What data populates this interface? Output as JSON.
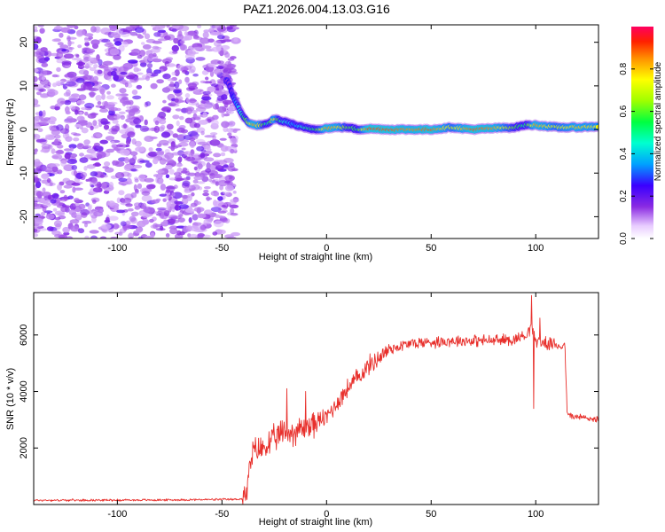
{
  "title": "PAZ1.2026.004.13.03.G16",
  "chart_data": [
    {
      "type": "heatmap",
      "name": "spectrogram",
      "xlabel": "Height of straight line (km)",
      "ylabel": "Frequency (Hz)",
      "xlim": [
        -140,
        130
      ],
      "ylim": [
        -25,
        24
      ],
      "xticks": [
        -100,
        -50,
        0,
        50,
        100
      ],
      "yticks": [
        -20,
        -10,
        0,
        10,
        20
      ],
      "colorbar": {
        "label": "Normalized spectral amplitude",
        "range": [
          0,
          1
        ],
        "ticks": [
          0.0,
          0.2,
          0.4,
          0.6,
          0.8
        ],
        "tick_labels": [
          "0.0",
          "0.2",
          "0.4",
          "0.6",
          "0.8"
        ]
      },
      "noise_region_x": [
        -140,
        -45
      ],
      "noise_amplitude_range": [
        0.05,
        0.2
      ],
      "ridge": {
        "x": [
          -47,
          -45,
          -42,
          -40,
          -37,
          -35,
          -32,
          -28,
          -25,
          -22,
          -18,
          -15,
          -10,
          -5,
          0,
          5,
          10,
          15,
          20,
          30,
          40,
          50,
          60,
          70,
          80,
          90,
          95,
          100,
          110,
          120,
          130
        ],
        "freq": [
          11,
          8,
          5,
          3,
          1.5,
          1,
          1,
          1.2,
          2.5,
          2,
          1.5,
          1,
          0.3,
          0,
          0.3,
          0.5,
          0.5,
          0,
          0.2,
          0,
          0,
          0,
          0.5,
          0,
          0.3,
          0.5,
          1,
          1,
          0.5,
          0.5,
          0.7
        ],
        "amplitude": [
          0.15,
          0.25,
          0.4,
          0.5,
          0.7,
          0.85,
          0.75,
          0.45,
          0.8,
          0.5,
          0.4,
          0.35,
          0.5,
          0.55,
          0.85,
          0.8,
          0.6,
          0.55,
          0.9,
          0.9,
          0.85,
          0.9,
          0.7,
          0.9,
          0.85,
          0.6,
          0.5,
          0.85,
          0.7,
          0.8,
          0.75
        ]
      }
    },
    {
      "type": "line",
      "name": "snr",
      "xlabel": "Height of straight line (km)",
      "ylabel": "SNR (10 * v/v)",
      "xlim": [
        -140,
        130
      ],
      "ylim": [
        0,
        7500
      ],
      "xticks": [
        -100,
        -50,
        0,
        50,
        100
      ],
      "yticks": [
        2000,
        4000,
        6000
      ],
      "series": [
        {
          "name": "SNR",
          "color": "#e8302c",
          "x": [
            -140,
            -80,
            -45,
            -40,
            -38,
            -36,
            -34,
            -30,
            -25,
            -20,
            -18,
            -15,
            -10,
            -5,
            0,
            10,
            20,
            30,
            40,
            50,
            60,
            70,
            80,
            90,
            95,
            98,
            100,
            105,
            110,
            114,
            115,
            118,
            120,
            125,
            130
          ],
          "values": [
            150,
            160,
            180,
            200,
            400,
            1700,
            1900,
            2000,
            2300,
            2600,
            2500,
            2600,
            2700,
            2900,
            3100,
            4100,
            4900,
            5500,
            5700,
            5750,
            5800,
            5800,
            5800,
            5850,
            6000,
            6300,
            5800,
            5700,
            5650,
            5600,
            3200,
            3100,
            3100,
            3050,
            3000
          ],
          "spikes": [
            {
              "x": -19,
              "value": 4100
            },
            {
              "x": -10,
              "value": 4000
            },
            {
              "x": 98,
              "value": 7400
            },
            {
              "x": 99,
              "value": 3400
            },
            {
              "x": 102,
              "value": 6600
            }
          ]
        }
      ]
    }
  ]
}
